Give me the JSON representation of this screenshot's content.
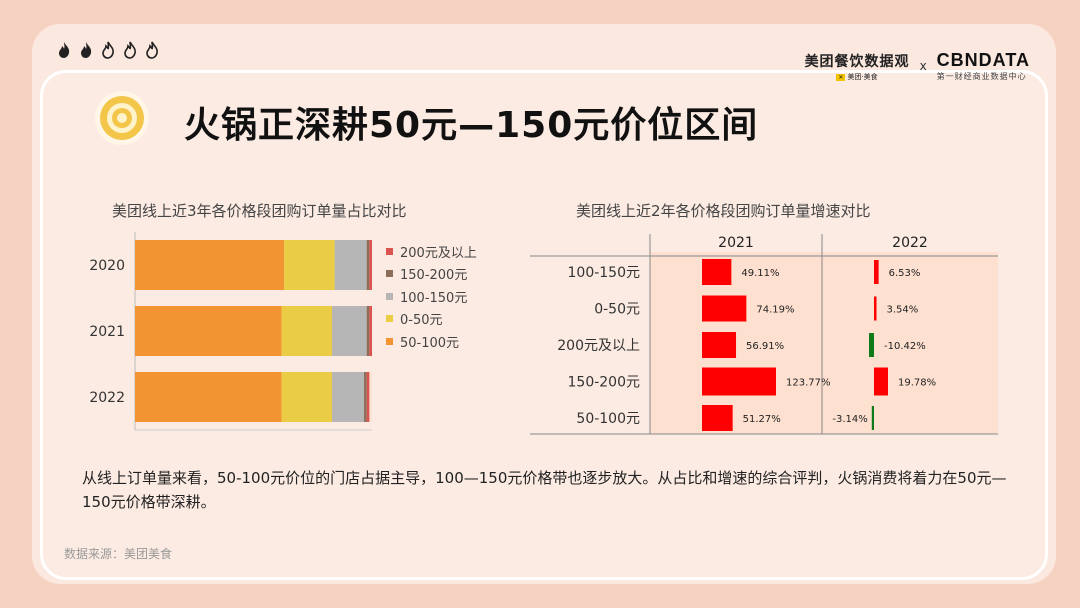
{
  "header": {
    "logo_meituan": "美团餐饮数据观",
    "logo_meituan_sub": "美团·美食",
    "logo_x": "x",
    "logo_cbn": "CBNDATA",
    "logo_cbn_sub": "第一财经商业数据中心"
  },
  "page_title": "火锅正深耕50元—150元价位区间",
  "summary": "从线上订单量来看，50-100元价位的门店占据主导，100—150元价格带也逐步放大。从占比和增速的综合评判，火锅消费将着力在50元—150元价格带深耕。",
  "source": "数据来源：美团美食",
  "colors": {
    "c_50_100": "#f29431",
    "c_0_50": "#ebcc45",
    "c_100_150": "#b6b6b6",
    "c_150_200": "#8c6e5a",
    "c_200plus": "#d9534f",
    "growth_bar": "#ff0000",
    "growth_negative": "#0f7a1a"
  },
  "chart_data": [
    {
      "type": "bar",
      "title": "美团线上近3年各价格段团购订单量占比对比",
      "orientation": "horizontal",
      "stacked": true,
      "categories": [
        "2020",
        "2021",
        "2022"
      ],
      "series": [
        {
          "name": "50-100元",
          "values": [
            0.56,
            0.55,
            0.55
          ]
        },
        {
          "name": "0-50元",
          "values": [
            0.19,
            0.19,
            0.19
          ]
        },
        {
          "name": "100-150元",
          "values": [
            0.12,
            0.13,
            0.12
          ]
        },
        {
          "name": "150-200元",
          "values": [
            0.01,
            0.01,
            0.01
          ]
        },
        {
          "name": "200元及以上",
          "values": [
            0.01,
            0.01,
            0.01
          ]
        }
      ],
      "xlim": [
        0,
        0.89
      ],
      "legend": "right",
      "legend_order": [
        "200元及以上",
        "150-200元",
        "100-150元",
        "0-50元",
        "50-100元"
      ]
    },
    {
      "type": "bar",
      "title": "美团线上近2年各价格段团购订单量增速对比",
      "orientation": "horizontal",
      "categories": [
        "100-150元",
        "0-50元",
        "200元及以上",
        "150-200元",
        "50-100元"
      ],
      "panels": [
        {
          "name": "2021",
          "values": [
            49.11,
            74.19,
            56.91,
            123.77,
            51.27
          ],
          "labels": [
            "49.11%",
            "74.19%",
            "56.91%",
            "123.77%",
            "51.27%"
          ]
        },
        {
          "name": "2022",
          "values": [
            6.53,
            3.54,
            -10.42,
            19.78,
            -3.14
          ],
          "labels": [
            "6.53%",
            "3.54%",
            "-10.42%",
            "19.78%",
            "-3.14%"
          ]
        }
      ]
    }
  ]
}
